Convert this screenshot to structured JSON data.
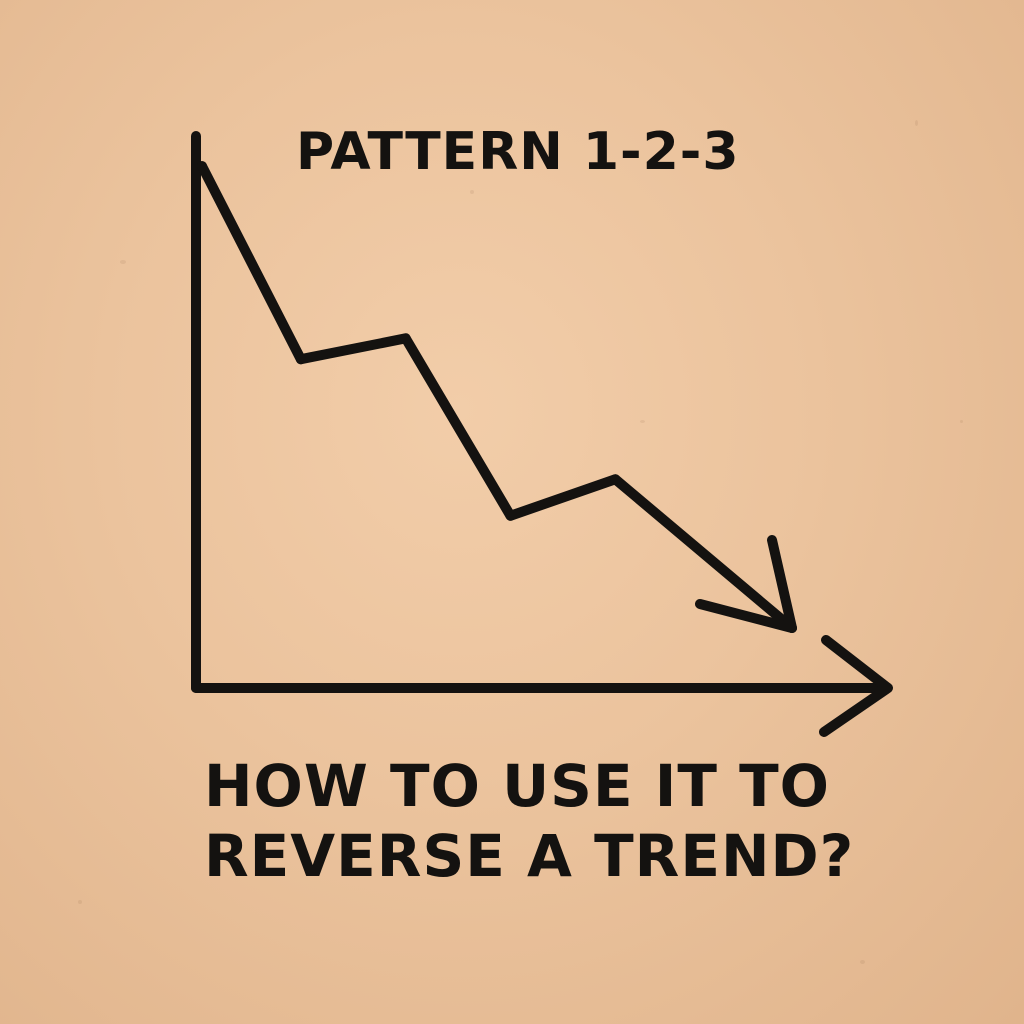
{
  "chart_data": {
    "type": "line",
    "title": "PATTERN 1-2-3",
    "subtitle_lines": [
      "HOW TO USE IT TO",
      "REVERSE A TREND?"
    ],
    "xlabel": "",
    "ylabel": "",
    "grid": false,
    "legend": "none",
    "x": [
      0,
      1,
      2,
      3,
      4,
      5
    ],
    "y": [
      10,
      6.3,
      6.7,
      3.3,
      4,
      1
    ],
    "xlim": [
      0,
      6
    ],
    "ylim": [
      0,
      10.5
    ],
    "line_color": "#141210",
    "axis_color": "#141210"
  },
  "colors": {
    "ink": "#141210",
    "paper": "#ebc39d"
  }
}
